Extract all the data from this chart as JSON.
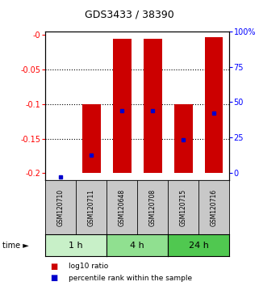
{
  "title": "GDS3433 / 38390",
  "samples": [
    "GSM120710",
    "GSM120711",
    "GSM120648",
    "GSM120708",
    "GSM120715",
    "GSM120716"
  ],
  "groups": [
    {
      "label": "1 h",
      "indices": [
        0,
        1
      ],
      "color": "#c8f0c8"
    },
    {
      "label": "4 h",
      "indices": [
        2,
        3
      ],
      "color": "#90e090"
    },
    {
      "label": "24 h",
      "indices": [
        4,
        5
      ],
      "color": "#50c850"
    }
  ],
  "log10_ratio": [
    -0.2,
    -0.1,
    -0.005,
    -0.005,
    -0.1,
    -0.003
  ],
  "log10_ratio_bottom": [
    -0.2,
    -0.2,
    -0.2,
    -0.2,
    -0.2,
    -0.2
  ],
  "percentile_rank": [
    0.02,
    0.17,
    0.47,
    0.47,
    0.27,
    0.45
  ],
  "ylim_left": [
    -0.21,
    0.005
  ],
  "ylim_right": [
    -5.25,
    100.0
  ],
  "yticks_left": [
    0.0,
    -0.05,
    -0.1,
    -0.15,
    -0.2
  ],
  "yticks_right": [
    100,
    75,
    50,
    25,
    0
  ],
  "bar_color": "#cc0000",
  "dot_color": "#0000cc",
  "bar_width": 0.6,
  "legend_log10": "log10 ratio",
  "legend_pct": "percentile rank within the sample",
  "time_label": "time",
  "sample_box_color": "#c8c8c8",
  "group_colors": [
    "#c8f0c8",
    "#90e090",
    "#50c850"
  ]
}
